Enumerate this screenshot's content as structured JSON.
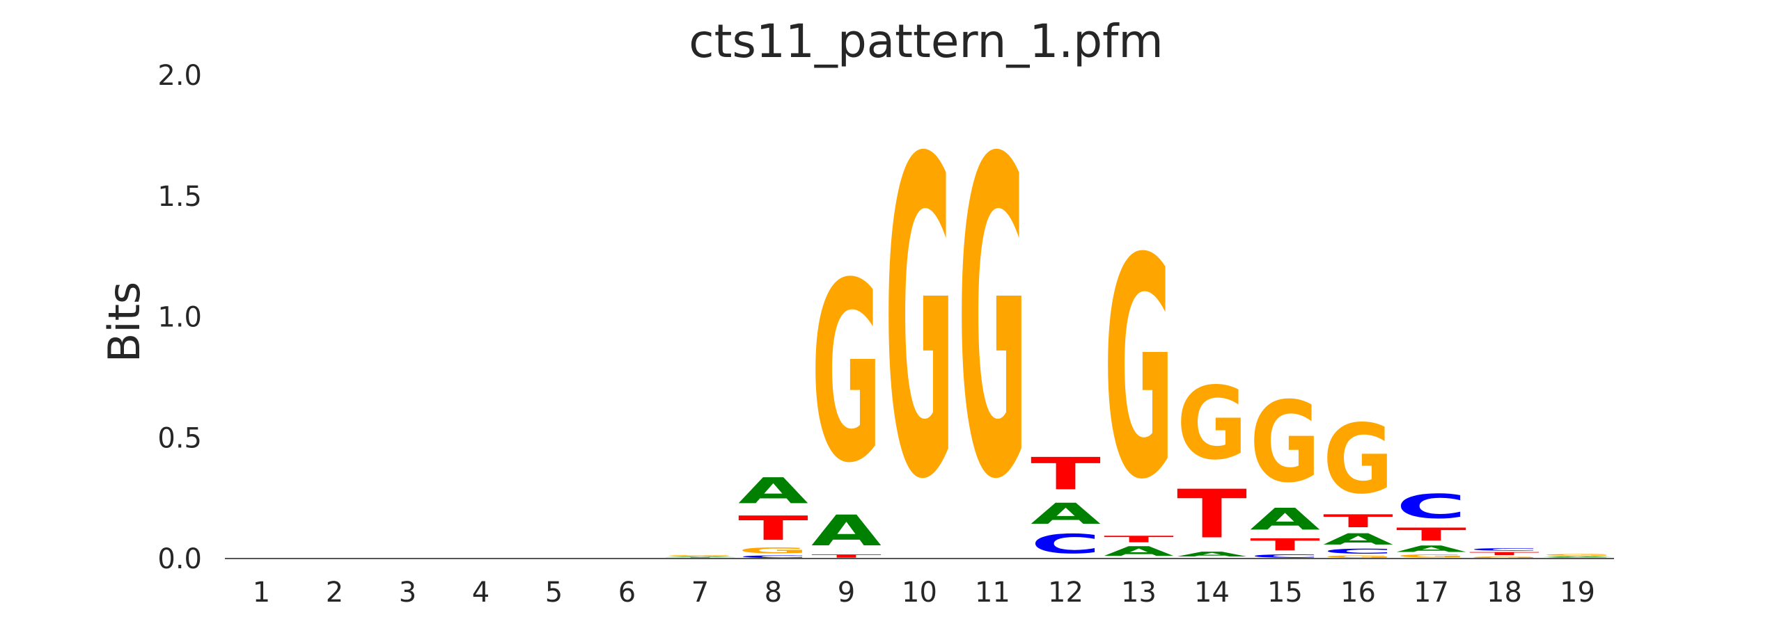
{
  "chart_data": {
    "type": "sequence_logo",
    "title": "cts11_pattern_1.pfm",
    "ylabel": "Bits",
    "xlabel": "",
    "ylim": [
      0,
      2.0
    ],
    "yticks": [
      "0.0",
      "0.5",
      "1.0",
      "1.5",
      "2.0"
    ],
    "ytick_values": [
      0,
      0.5,
      1.0,
      1.5,
      2.0
    ],
    "positions": [
      "1",
      "2",
      "3",
      "4",
      "5",
      "6",
      "7",
      "8",
      "9",
      "10",
      "11",
      "12",
      "13",
      "14",
      "15",
      "16",
      "17",
      "18",
      "19"
    ],
    "colors": {
      "A": "#008000",
      "C": "#0000ff",
      "G": "#ffa500",
      "T": "#ff0000"
    },
    "stacks": [
      [],
      [],
      [],
      [],
      [],
      [],
      [
        {
          "letter": "C",
          "height": 0.003
        },
        {
          "letter": "T",
          "height": 0.003
        },
        {
          "letter": "A",
          "height": 0.004
        },
        {
          "letter": "G",
          "height": 0.004
        }
      ],
      [
        {
          "letter": "C",
          "height": 0.015
        },
        {
          "letter": "G",
          "height": 0.035
        },
        {
          "letter": "T",
          "height": 0.15
        },
        {
          "letter": "A",
          "height": 0.16
        }
      ],
      [
        {
          "letter": "T",
          "height": 0.02
        },
        {
          "letter": "A",
          "height": 0.19
        },
        {
          "letter": "G",
          "height": 1.11
        }
      ],
      [
        {
          "letter": "G",
          "height": 1.96
        }
      ],
      [
        {
          "letter": "G",
          "height": 1.96
        }
      ],
      [
        {
          "letter": "C",
          "height": 0.12
        },
        {
          "letter": "A",
          "height": 0.13
        },
        {
          "letter": "T",
          "height": 0.2
        }
      ],
      [
        {
          "letter": "A",
          "height": 0.06
        },
        {
          "letter": "T",
          "height": 0.04
        },
        {
          "letter": "G",
          "height": 1.36
        }
      ],
      [
        {
          "letter": "G",
          "height": 0.003
        },
        {
          "letter": "A",
          "height": 0.03
        },
        {
          "letter": "T",
          "height": 0.3
        },
        {
          "letter": "G",
          "height": 0.45
        }
      ],
      [
        {
          "letter": "C",
          "height": 0.02
        },
        {
          "letter": "T",
          "height": 0.075
        },
        {
          "letter": "A",
          "height": 0.135
        },
        {
          "letter": "G",
          "height": 0.5
        }
      ],
      [
        {
          "letter": "G",
          "height": 0.015
        },
        {
          "letter": "C",
          "height": 0.03
        },
        {
          "letter": "A",
          "height": 0.07
        },
        {
          "letter": "T",
          "height": 0.08
        },
        {
          "letter": "G",
          "height": 0.43
        }
      ],
      [
        {
          "letter": "G",
          "height": 0.02
        },
        {
          "letter": "A",
          "height": 0.04
        },
        {
          "letter": "T",
          "height": 0.08
        },
        {
          "letter": "C",
          "height": 0.15
        }
      ],
      [
        {
          "letter": "G",
          "height": 0.01
        },
        {
          "letter": "T",
          "height": 0.02
        },
        {
          "letter": "C",
          "height": 0.015
        }
      ],
      [
        {
          "letter": "C",
          "height": 0.005
        },
        {
          "letter": "A",
          "height": 0.005
        },
        {
          "letter": "G",
          "height": 0.01
        }
      ]
    ]
  }
}
